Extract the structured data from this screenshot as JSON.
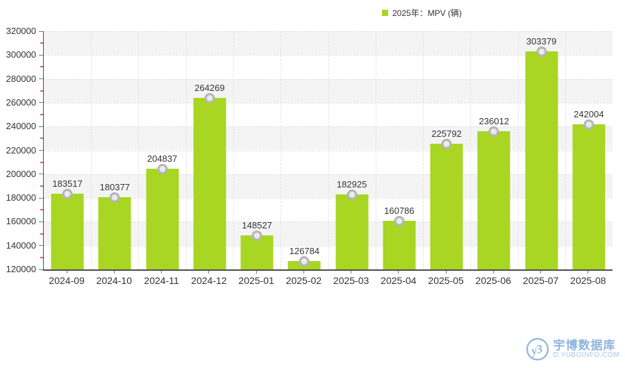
{
  "chart_data": {
    "type": "bar",
    "title": "",
    "legend": "2025年：MPV (辆)",
    "categories": [
      "2024-09",
      "2024-10",
      "2024-11",
      "2024-12",
      "2025-01",
      "2025-02",
      "2025-03",
      "2025-04",
      "2025-05",
      "2025-06",
      "2025-07",
      "2025-08"
    ],
    "values": [
      183517,
      180377,
      204837,
      264269,
      148527,
      126784,
      182925,
      160786,
      225792,
      236012,
      303379,
      242004
    ],
    "ylim": [
      120000,
      320000
    ],
    "yticks": [
      320000,
      300000,
      280000,
      260000,
      240000,
      220000,
      200000,
      180000,
      160000,
      140000,
      120000
    ],
    "xlabel": "",
    "ylabel": "",
    "legend_position": "top-center",
    "grid": "alternating horizontal bands with dashed dividers and dashed vertical category boundary lines"
  },
  "legend": {
    "label": "2025年：MPV (辆)",
    "swatch": "green-square"
  },
  "watermark": {
    "brand": "宇博数据库",
    "domain": "D.YUBOINFO.COM",
    "logo": "yubo-circle-monogram"
  },
  "colors": {
    "bar": "#a8d622",
    "band": "#f4f4f4",
    "grid": "#e2e2e2",
    "axis": "#4d4d4d",
    "text": "#333333",
    "minorTick": "#e0604c",
    "anchorRing": "#b5b5b5",
    "anchorFill": "#d9d9d9",
    "wmBlue": "#8fb4df",
    "wmLight": "#a8c6e8"
  }
}
